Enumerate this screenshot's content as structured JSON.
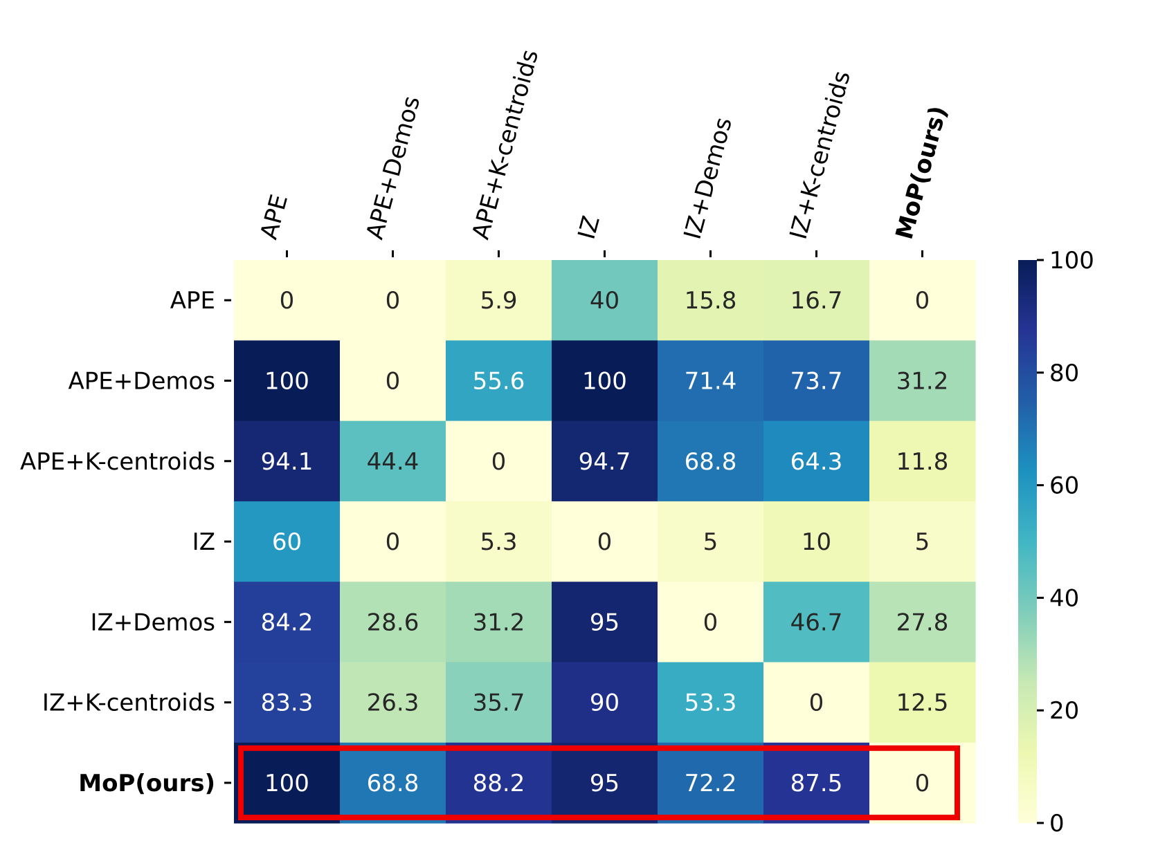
{
  "chart_data": {
    "type": "heatmap",
    "title": "",
    "xlabel": "",
    "ylabel": "",
    "columns": [
      "APE",
      "APE+Demos",
      "APE+K-centroids",
      "IZ",
      "IZ+Demos",
      "IZ+K-centroids",
      "MoP(ours)"
    ],
    "rows": [
      "APE",
      "APE+Demos",
      "APE+K-centroids",
      "IZ",
      "IZ+Demos",
      "IZ+K-centroids",
      "MoP(ours)"
    ],
    "values": [
      [
        0,
        0,
        5.9,
        40,
        15.8,
        16.7,
        0
      ],
      [
        100,
        0,
        55.6,
        100,
        71.4,
        73.7,
        31.2
      ],
      [
        94.1,
        44.4,
        0,
        94.7,
        68.8,
        64.3,
        11.8
      ],
      [
        60,
        0,
        5.3,
        0,
        5,
        10,
        5
      ],
      [
        84.2,
        28.6,
        31.2,
        95,
        0,
        46.7,
        27.8
      ],
      [
        83.3,
        26.3,
        35.7,
        90,
        53.3,
        0,
        12.5
      ],
      [
        100,
        68.8,
        88.2,
        95,
        72.2,
        87.5,
        0
      ]
    ],
    "value_labels": [
      [
        "0",
        "0",
        "5.9",
        "40",
        "15.8",
        "16.7",
        "0"
      ],
      [
        "100",
        "0",
        "55.6",
        "100",
        "71.4",
        "73.7",
        "31.2"
      ],
      [
        "94.1",
        "44.4",
        "0",
        "94.7",
        "68.8",
        "64.3",
        "11.8"
      ],
      [
        "60",
        "0",
        "5.3",
        "0",
        "5",
        "10",
        "5"
      ],
      [
        "84.2",
        "28.6",
        "31.2",
        "95",
        "0",
        "46.7",
        "27.8"
      ],
      [
        "83.3",
        "26.3",
        "35.7",
        "90",
        "53.3",
        "0",
        "12.5"
      ],
      [
        "100",
        "68.8",
        "88.2",
        "95",
        "72.2",
        "87.5",
        "0"
      ]
    ],
    "bold_labels": [
      "MoP(ours)"
    ],
    "highlighted_row": "MoP(ours)",
    "highlight_color": "#ee0000",
    "colormap": "YlGnBu",
    "colormap_stops": [
      "#ffffd9",
      "#edf8b1",
      "#c7e9b4",
      "#7fcdbb",
      "#41b6c4",
      "#1d91c0",
      "#225ea8",
      "#253494",
      "#081d58"
    ],
    "vmin": 0,
    "vmax": 100,
    "colorbar_ticks": [
      0,
      20,
      40,
      60,
      80,
      100
    ],
    "x_axis_position": "top",
    "x_label_rotation": -75
  }
}
